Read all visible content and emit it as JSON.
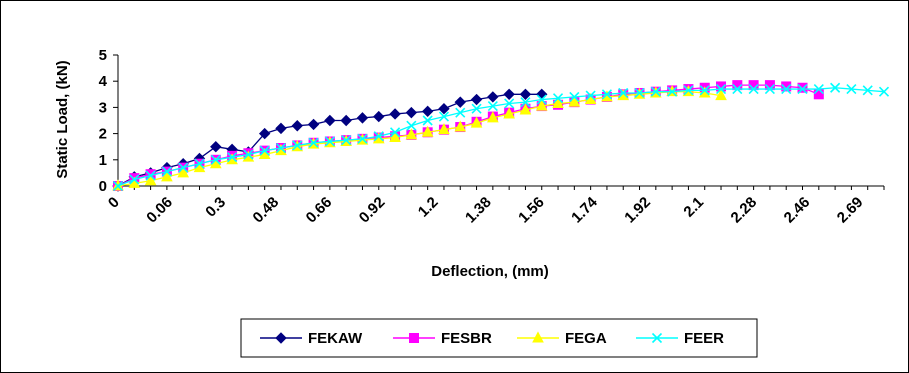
{
  "chart_data": {
    "type": "line",
    "title": "",
    "xlabel": "Deflection, (mm)",
    "ylabel": "Static Load, (kN)",
    "ylim": [
      0,
      5
    ],
    "yticks": [
      "0",
      "1",
      "2",
      "3",
      "4",
      "5"
    ],
    "x_tick_labels": [
      "0",
      "0.06",
      "0.3",
      "0.48",
      "0.66",
      "0.92",
      "1.2",
      "1.38",
      "1.56",
      "1.74",
      "1.92",
      "2.1",
      "2.28",
      "2.46",
      "2.69"
    ],
    "grid": false,
    "legend": "bottom",
    "x_points": 48,
    "series": [
      {
        "name": "FEKAW",
        "color": "#000080",
        "marker": "diamond",
        "values": [
          0,
          0.35,
          0.5,
          0.7,
          0.85,
          1.05,
          1.5,
          1.4,
          1.3,
          2.0,
          2.2,
          2.3,
          2.35,
          2.5,
          2.5,
          2.6,
          2.65,
          2.75,
          2.8,
          2.85,
          2.95,
          3.2,
          3.3,
          3.4,
          3.5,
          3.5,
          3.5
        ]
      },
      {
        "name": "FESBR",
        "color": "#FF00FF",
        "marker": "square",
        "values": [
          0,
          0.3,
          0.45,
          0.55,
          0.7,
          0.85,
          1.0,
          1.15,
          1.25,
          1.35,
          1.45,
          1.55,
          1.65,
          1.7,
          1.75,
          1.8,
          1.85,
          1.9,
          1.95,
          2.05,
          2.15,
          2.25,
          2.45,
          2.65,
          2.8,
          2.95,
          3.05,
          3.1,
          3.2,
          3.3,
          3.4,
          3.5,
          3.55,
          3.6,
          3.65,
          3.7,
          3.75,
          3.8,
          3.85,
          3.85,
          3.85,
          3.8,
          3.75,
          3.5
        ]
      },
      {
        "name": "FEGA",
        "color": "#FFFF00",
        "marker": "triangle",
        "values": [
          0,
          0.1,
          0.2,
          0.35,
          0.5,
          0.7,
          0.85,
          1.0,
          1.1,
          1.2,
          1.35,
          1.5,
          1.6,
          1.65,
          1.7,
          1.75,
          1.8,
          1.85,
          1.95,
          2.05,
          2.15,
          2.25,
          2.4,
          2.6,
          2.75,
          2.9,
          3.05,
          3.15,
          3.2,
          3.3,
          3.4,
          3.45,
          3.5,
          3.55,
          3.6,
          3.6,
          3.55,
          3.45
        ]
      },
      {
        "name": "FEER",
        "color": "#00FFFF",
        "marker": "x",
        "values": [
          0,
          0.25,
          0.4,
          0.55,
          0.7,
          0.85,
          1.0,
          1.1,
          1.2,
          1.35,
          1.45,
          1.55,
          1.65,
          1.7,
          1.75,
          1.8,
          1.9,
          2.05,
          2.3,
          2.5,
          2.65,
          2.8,
          2.95,
          3.05,
          3.15,
          3.2,
          3.3,
          3.35,
          3.4,
          3.45,
          3.5,
          3.55,
          3.55,
          3.6,
          3.6,
          3.65,
          3.65,
          3.7,
          3.7,
          3.7,
          3.7,
          3.7,
          3.7,
          3.7,
          3.75,
          3.7,
          3.65,
          3.6
        ]
      }
    ]
  }
}
